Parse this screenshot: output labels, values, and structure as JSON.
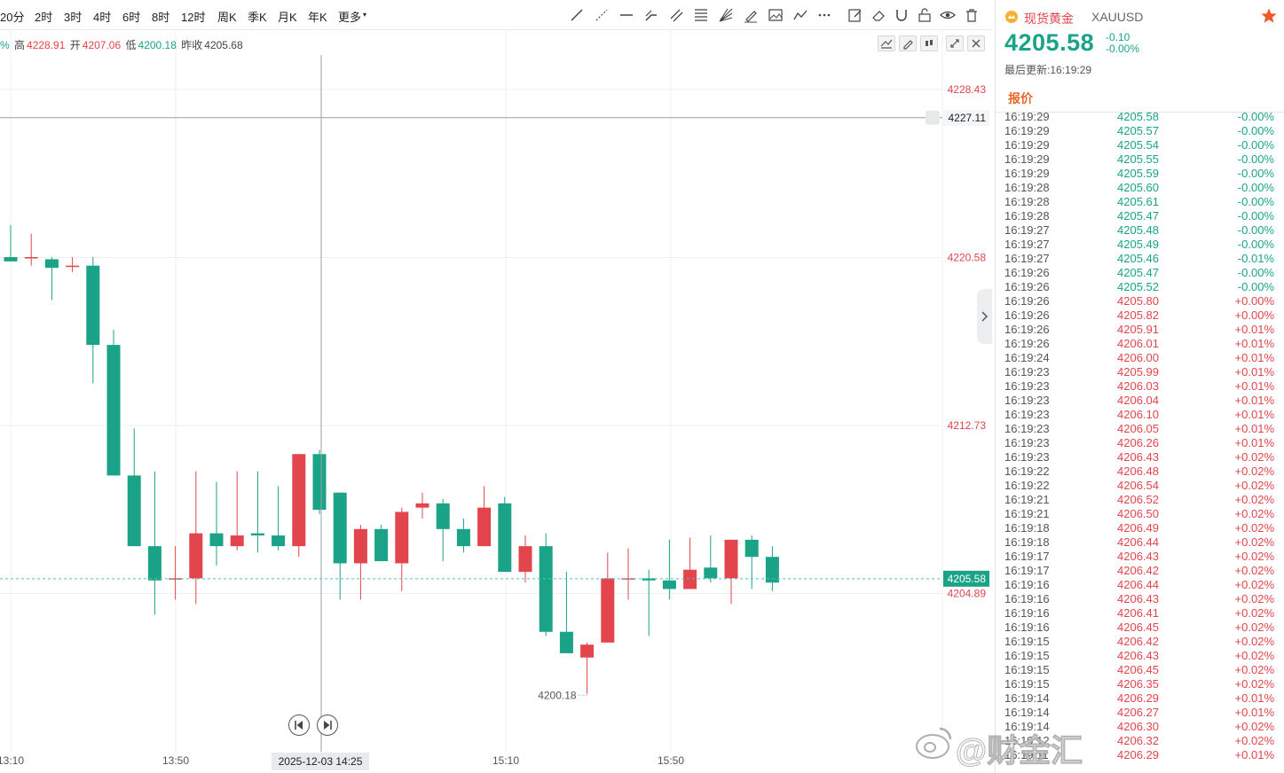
{
  "toolbar": {
    "timeframes": [
      "20分",
      "2时",
      "3时",
      "4时",
      "6时",
      "8时",
      "12时",
      "周K",
      "季K",
      "月K",
      "年K",
      "更多"
    ]
  },
  "ohlc": {
    "partial_pct": "%",
    "high_label": "高",
    "high": "4228.91",
    "open_label": "开",
    "open": "4207.06",
    "low_label": "低",
    "low": "4200.18",
    "prev_label": "昨收",
    "prev": "4205.68"
  },
  "chart_data": {
    "type": "candlestick",
    "title": "",
    "xlabel": "",
    "ylabel": "",
    "ylim": [
      4197.5,
      4231.2
    ],
    "price_ticks": [
      "4228.43",
      "4220.58",
      "4212.73",
      "4204.89"
    ],
    "crosshair_price": "4227.11",
    "current_price": "4205.58",
    "low_annotation": "4200.18",
    "x_ticks": [
      "13:10",
      "13:50",
      "14:25",
      "15:10",
      "15:50"
    ],
    "crosshair_date": "2025-12-03 14:25",
    "candles": [
      {
        "open": 4220.6,
        "close": 4220.4,
        "high": 4222.1,
        "low": 4220.4
      },
      {
        "open": 4220.6,
        "close": 4220.6,
        "high": 4221.7,
        "low": 4220.2
      },
      {
        "open": 4220.5,
        "close": 4220.1,
        "high": 4220.6,
        "low": 4218.6
      },
      {
        "open": 4220.2,
        "close": 4220.2,
        "high": 4220.6,
        "low": 4219.9
      },
      {
        "open": 4220.2,
        "close": 4216.5,
        "high": 4220.6,
        "low": 4214.7
      },
      {
        "open": 4216.5,
        "close": 4210.4,
        "high": 4217.2,
        "low": 4210.4
      },
      {
        "open": 4210.4,
        "close": 4207.1,
        "high": 4212.6,
        "low": 4207.1
      },
      {
        "open": 4207.1,
        "close": 4205.5,
        "high": 4210.6,
        "low": 4203.9
      },
      {
        "open": 4205.6,
        "close": 4205.6,
        "high": 4207.1,
        "low": 4204.6
      },
      {
        "open": 4205.6,
        "close": 4207.7,
        "high": 4210.6,
        "low": 4204.4
      },
      {
        "open": 4207.7,
        "close": 4207.1,
        "high": 4210.1,
        "low": 4206.2
      },
      {
        "open": 4207.1,
        "close": 4207.6,
        "high": 4210.6,
        "low": 4206.9
      },
      {
        "open": 4207.7,
        "close": 4207.6,
        "high": 4210.6,
        "low": 4206.8
      },
      {
        "open": 4207.6,
        "close": 4207.1,
        "high": 4209.9,
        "low": 4206.9
      },
      {
        "open": 4207.1,
        "close": 4211.4,
        "high": 4211.4,
        "low": 4206.6
      },
      {
        "open": 4211.4,
        "close": 4208.8,
        "high": 4211.6,
        "low": 4208.6
      },
      {
        "open": 4209.6,
        "close": 4206.3,
        "high": 4209.6,
        "low": 4204.6
      },
      {
        "open": 4206.3,
        "close": 4207.9,
        "high": 4208.1,
        "low": 4204.6
      },
      {
        "open": 4207.9,
        "close": 4206.4,
        "high": 4208.1,
        "low": 4206.4
      },
      {
        "open": 4206.3,
        "close": 4208.7,
        "high": 4208.9,
        "low": 4205.0
      },
      {
        "open": 4208.9,
        "close": 4209.1,
        "high": 4209.6,
        "low": 4208.4
      },
      {
        "open": 4209.1,
        "close": 4207.9,
        "high": 4209.3,
        "low": 4206.4
      },
      {
        "open": 4207.9,
        "close": 4207.1,
        "high": 4208.4,
        "low": 4206.8
      },
      {
        "open": 4207.1,
        "close": 4208.9,
        "high": 4209.9,
        "low": 4207.1
      },
      {
        "open": 4209.1,
        "close": 4205.9,
        "high": 4209.4,
        "low": 4205.9
      },
      {
        "open": 4205.9,
        "close": 4207.1,
        "high": 4207.6,
        "low": 4205.4
      },
      {
        "open": 4207.1,
        "close": 4203.1,
        "high": 4207.7,
        "low": 4202.9
      },
      {
        "open": 4203.1,
        "close": 4202.1,
        "high": 4205.9,
        "low": 4202.1
      },
      {
        "open": 4201.9,
        "close": 4202.5,
        "high": 4202.6,
        "low": 4200.2
      },
      {
        "open": 4202.6,
        "close": 4205.6,
        "high": 4206.8,
        "low": 4202.6
      },
      {
        "open": 4205.6,
        "close": 4205.6,
        "high": 4207.0,
        "low": 4204.6
      },
      {
        "open": 4205.6,
        "close": 4205.5,
        "high": 4206.0,
        "low": 4202.9
      },
      {
        "open": 4205.5,
        "close": 4205.1,
        "high": 4207.4,
        "low": 4204.6
      },
      {
        "open": 4205.1,
        "close": 4206.0,
        "high": 4207.5,
        "low": 4205.1
      },
      {
        "open": 4206.1,
        "close": 4205.6,
        "high": 4207.6,
        "low": 4205.4
      },
      {
        "open": 4205.6,
        "close": 4207.4,
        "high": 4207.4,
        "low": 4204.4
      },
      {
        "open": 4207.4,
        "close": 4206.6,
        "high": 4207.6,
        "low": 4205.1
      },
      {
        "open": 4206.6,
        "close": 4205.4,
        "high": 4207.1,
        "low": 4205.0
      }
    ],
    "up_color": "#e2454b",
    "down_color": "#1aa386",
    "grid": true
  },
  "watermark": {
    "text": "@财金汇"
  },
  "quote": {
    "name": "现货黄金",
    "symbol": "XAUUSD",
    "price": "4205.58",
    "change": "-0.10",
    "change_pct": "-0.00%",
    "updated_label": "最后更新:16:19:29",
    "tab_label": "报价",
    "ticks": [
      {
        "time": "16:19:29",
        "price": "4205.58",
        "pct": "-0.00%",
        "dir": "down"
      },
      {
        "time": "16:19:29",
        "price": "4205.57",
        "pct": "-0.00%",
        "dir": "down"
      },
      {
        "time": "16:19:29",
        "price": "4205.54",
        "pct": "-0.00%",
        "dir": "down"
      },
      {
        "time": "16:19:29",
        "price": "4205.55",
        "pct": "-0.00%",
        "dir": "down"
      },
      {
        "time": "16:19:29",
        "price": "4205.59",
        "pct": "-0.00%",
        "dir": "down"
      },
      {
        "time": "16:19:28",
        "price": "4205.60",
        "pct": "-0.00%",
        "dir": "down"
      },
      {
        "time": "16:19:28",
        "price": "4205.61",
        "pct": "-0.00%",
        "dir": "down"
      },
      {
        "time": "16:19:28",
        "price": "4205.47",
        "pct": "-0.00%",
        "dir": "down"
      },
      {
        "time": "16:19:27",
        "price": "4205.48",
        "pct": "-0.00%",
        "dir": "down"
      },
      {
        "time": "16:19:27",
        "price": "4205.49",
        "pct": "-0.00%",
        "dir": "down"
      },
      {
        "time": "16:19:27",
        "price": "4205.46",
        "pct": "-0.01%",
        "dir": "down"
      },
      {
        "time": "16:19:26",
        "price": "4205.47",
        "pct": "-0.00%",
        "dir": "down"
      },
      {
        "time": "16:19:26",
        "price": "4205.52",
        "pct": "-0.00%",
        "dir": "down"
      },
      {
        "time": "16:19:26",
        "price": "4205.80",
        "pct": "+0.00%",
        "dir": "up"
      },
      {
        "time": "16:19:26",
        "price": "4205.82",
        "pct": "+0.00%",
        "dir": "up"
      },
      {
        "time": "16:19:26",
        "price": "4205.91",
        "pct": "+0.01%",
        "dir": "up"
      },
      {
        "time": "16:19:26",
        "price": "4206.01",
        "pct": "+0.01%",
        "dir": "up"
      },
      {
        "time": "16:19:24",
        "price": "4206.00",
        "pct": "+0.01%",
        "dir": "up"
      },
      {
        "time": "16:19:23",
        "price": "4205.99",
        "pct": "+0.01%",
        "dir": "up"
      },
      {
        "time": "16:19:23",
        "price": "4206.03",
        "pct": "+0.01%",
        "dir": "up"
      },
      {
        "time": "16:19:23",
        "price": "4206.04",
        "pct": "+0.01%",
        "dir": "up"
      },
      {
        "time": "16:19:23",
        "price": "4206.10",
        "pct": "+0.01%",
        "dir": "up"
      },
      {
        "time": "16:19:23",
        "price": "4206.05",
        "pct": "+0.01%",
        "dir": "up"
      },
      {
        "time": "16:19:23",
        "price": "4206.26",
        "pct": "+0.01%",
        "dir": "up"
      },
      {
        "time": "16:19:23",
        "price": "4206.43",
        "pct": "+0.02%",
        "dir": "up"
      },
      {
        "time": "16:19:22",
        "price": "4206.48",
        "pct": "+0.02%",
        "dir": "up"
      },
      {
        "time": "16:19:22",
        "price": "4206.54",
        "pct": "+0.02%",
        "dir": "up"
      },
      {
        "time": "16:19:21",
        "price": "4206.52",
        "pct": "+0.02%",
        "dir": "up"
      },
      {
        "time": "16:19:21",
        "price": "4206.50",
        "pct": "+0.02%",
        "dir": "up"
      },
      {
        "time": "16:19:18",
        "price": "4206.49",
        "pct": "+0.02%",
        "dir": "up"
      },
      {
        "time": "16:19:18",
        "price": "4206.44",
        "pct": "+0.02%",
        "dir": "up"
      },
      {
        "time": "16:19:17",
        "price": "4206.43",
        "pct": "+0.02%",
        "dir": "up"
      },
      {
        "time": "16:19:17",
        "price": "4206.42",
        "pct": "+0.02%",
        "dir": "up"
      },
      {
        "time": "16:19:16",
        "price": "4206.44",
        "pct": "+0.02%",
        "dir": "up"
      },
      {
        "time": "16:19:16",
        "price": "4206.43",
        "pct": "+0.02%",
        "dir": "up"
      },
      {
        "time": "16:19:16",
        "price": "4206.41",
        "pct": "+0.02%",
        "dir": "up"
      },
      {
        "time": "16:19:16",
        "price": "4206.45",
        "pct": "+0.02%",
        "dir": "up"
      },
      {
        "time": "16:19:15",
        "price": "4206.42",
        "pct": "+0.02%",
        "dir": "up"
      },
      {
        "time": "16:19:15",
        "price": "4206.43",
        "pct": "+0.02%",
        "dir": "up"
      },
      {
        "time": "16:19:15",
        "price": "4206.45",
        "pct": "+0.02%",
        "dir": "up"
      },
      {
        "time": "16:19:15",
        "price": "4206.35",
        "pct": "+0.02%",
        "dir": "up"
      },
      {
        "time": "16:19:14",
        "price": "4206.29",
        "pct": "+0.01%",
        "dir": "up"
      },
      {
        "time": "16:19:14",
        "price": "4206.27",
        "pct": "+0.01%",
        "dir": "up"
      },
      {
        "time": "16:19:14",
        "price": "4206.30",
        "pct": "+0.02%",
        "dir": "up"
      },
      {
        "time": "16:19:12",
        "price": "4206.32",
        "pct": "+0.02%",
        "dir": "up"
      },
      {
        "time": "16:19:11",
        "price": "4206.29",
        "pct": "+0.01%",
        "dir": "up"
      }
    ]
  }
}
